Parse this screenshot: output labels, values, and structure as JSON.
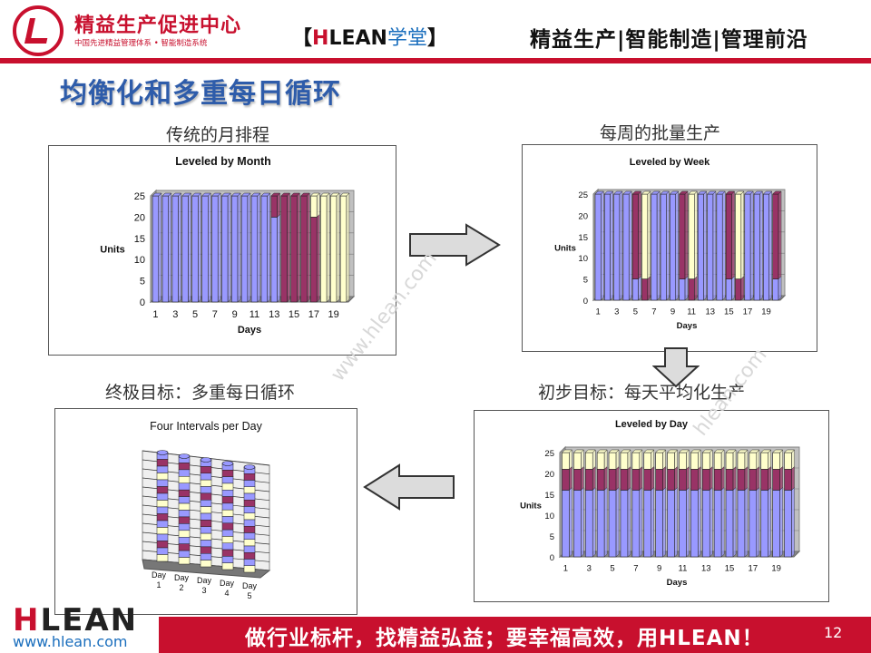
{
  "header": {
    "logo_name": "精益生产促进中心",
    "logo_sub": "中国先进精益管理体系 • 智能制造系统",
    "brand_open": "【",
    "brand_h": "H",
    "brand_rest": "LEAN",
    "brand_school": "学堂",
    "brand_close": "】",
    "slogan": "精益生产|智能制造|管理前沿"
  },
  "title": "均衡化和多重每日循环",
  "captions": {
    "monthly": "传统的月排程",
    "weekly": "每周的批量生产",
    "daily": "初步目标：每天平均化生产",
    "multi": "终极目标：多重每日循环"
  },
  "watermarks": [
    "www.hlean.com",
    "hlean.com"
  ],
  "colors": {
    "accent": "#c8102e",
    "title": "#2e5caa",
    "series_a": "#9999ff",
    "series_b": "#993366",
    "series_c": "#ffffcc"
  },
  "footer": {
    "slogan": "做行业标杆，找精益弘益；要幸福高效，用HLEAN！",
    "page_number": "12",
    "logo_h": "H",
    "logo_rest": "LEAN",
    "url": "www.hlean.com"
  },
  "chart_data": [
    {
      "type": "bar",
      "stacked": true,
      "title": "Leveled by Month",
      "xlabel": "Days",
      "ylabel": "Units",
      "ylim": [
        0,
        25
      ],
      "yticks": [
        0,
        5,
        10,
        15,
        20,
        25
      ],
      "x": [
        1,
        2,
        3,
        4,
        5,
        6,
        7,
        8,
        9,
        10,
        11,
        12,
        13,
        14,
        15,
        16,
        17,
        18,
        19,
        20
      ],
      "xtick_labels": [
        "1",
        "3",
        "5",
        "7",
        "9",
        "11",
        "13",
        "15",
        "17",
        "19"
      ],
      "series": [
        {
          "color": "#9999ff",
          "values": [
            25,
            25,
            25,
            25,
            25,
            25,
            25,
            25,
            25,
            25,
            25,
            25,
            20,
            0,
            0,
            0,
            0,
            0,
            0,
            0
          ]
        },
        {
          "color": "#993366",
          "values": [
            0,
            0,
            0,
            0,
            0,
            0,
            0,
            0,
            0,
            0,
            0,
            0,
            5,
            25,
            25,
            25,
            20,
            0,
            0,
            0
          ]
        },
        {
          "color": "#ffffcc",
          "values": [
            0,
            0,
            0,
            0,
            0,
            0,
            0,
            0,
            0,
            0,
            0,
            0,
            0,
            0,
            0,
            0,
            5,
            25,
            25,
            25
          ]
        }
      ]
    },
    {
      "type": "bar",
      "stacked": true,
      "title": "Leveled by Week",
      "xlabel": "Days",
      "ylabel": "Units",
      "ylim": [
        0,
        25
      ],
      "yticks": [
        0,
        5,
        10,
        15,
        20,
        25
      ],
      "x": [
        1,
        2,
        3,
        4,
        5,
        6,
        7,
        8,
        9,
        10,
        11,
        12,
        13,
        14,
        15,
        16,
        17,
        18,
        19,
        20
      ],
      "xtick_labels": [
        "1",
        "3",
        "5",
        "7",
        "9",
        "11",
        "13",
        "15",
        "17",
        "19"
      ],
      "series": [
        {
          "color": "#9999ff",
          "values": [
            25,
            25,
            25,
            25,
            5,
            0,
            25,
            25,
            25,
            5,
            0,
            25,
            25,
            25,
            5,
            0,
            25,
            25,
            25,
            5
          ]
        },
        {
          "color": "#993366",
          "values": [
            0,
            0,
            0,
            0,
            20,
            5,
            0,
            0,
            0,
            20,
            5,
            0,
            0,
            0,
            20,
            5,
            0,
            0,
            0,
            20
          ]
        },
        {
          "color": "#ffffcc",
          "values": [
            0,
            0,
            0,
            0,
            0,
            20,
            0,
            0,
            0,
            0,
            20,
            0,
            0,
            0,
            0,
            20,
            0,
            0,
            0,
            0
          ]
        }
      ]
    },
    {
      "type": "bar",
      "stacked": true,
      "title": "Leveled by Day",
      "xlabel": "Days",
      "ylabel": "Units",
      "ylim": [
        0,
        25
      ],
      "yticks": [
        0,
        5,
        10,
        15,
        20,
        25
      ],
      "x": [
        1,
        2,
        3,
        4,
        5,
        6,
        7,
        8,
        9,
        10,
        11,
        12,
        13,
        14,
        15,
        16,
        17,
        18,
        19,
        20
      ],
      "xtick_labels": [
        "1",
        "3",
        "5",
        "7",
        "9",
        "11",
        "13",
        "15",
        "17",
        "19"
      ],
      "series": [
        {
          "color": "#9999ff",
          "values": [
            16,
            16,
            16,
            16,
            16,
            16,
            16,
            16,
            16,
            16,
            16,
            16,
            16,
            16,
            16,
            16,
            16,
            16,
            16,
            16
          ]
        },
        {
          "color": "#993366",
          "values": [
            5,
            5,
            5,
            5,
            5,
            5,
            5,
            5,
            5,
            5,
            5,
            5,
            5,
            5,
            5,
            5,
            5,
            5,
            5,
            5
          ]
        },
        {
          "color": "#ffffcc",
          "values": [
            4,
            4,
            4,
            4,
            4,
            4,
            4,
            4,
            4,
            4,
            4,
            4,
            4,
            4,
            4,
            4,
            4,
            4,
            4,
            4
          ]
        }
      ]
    },
    {
      "type": "bar",
      "stacked": true,
      "title": "Four Intervals per Day",
      "categories": [
        "Day 1",
        "Day 2",
        "Day 3",
        "Day 4",
        "Day 5"
      ],
      "segment_colors": [
        "#9999ff",
        "#993366",
        "#ffffcc"
      ],
      "segments_per_bar": 16
    }
  ]
}
